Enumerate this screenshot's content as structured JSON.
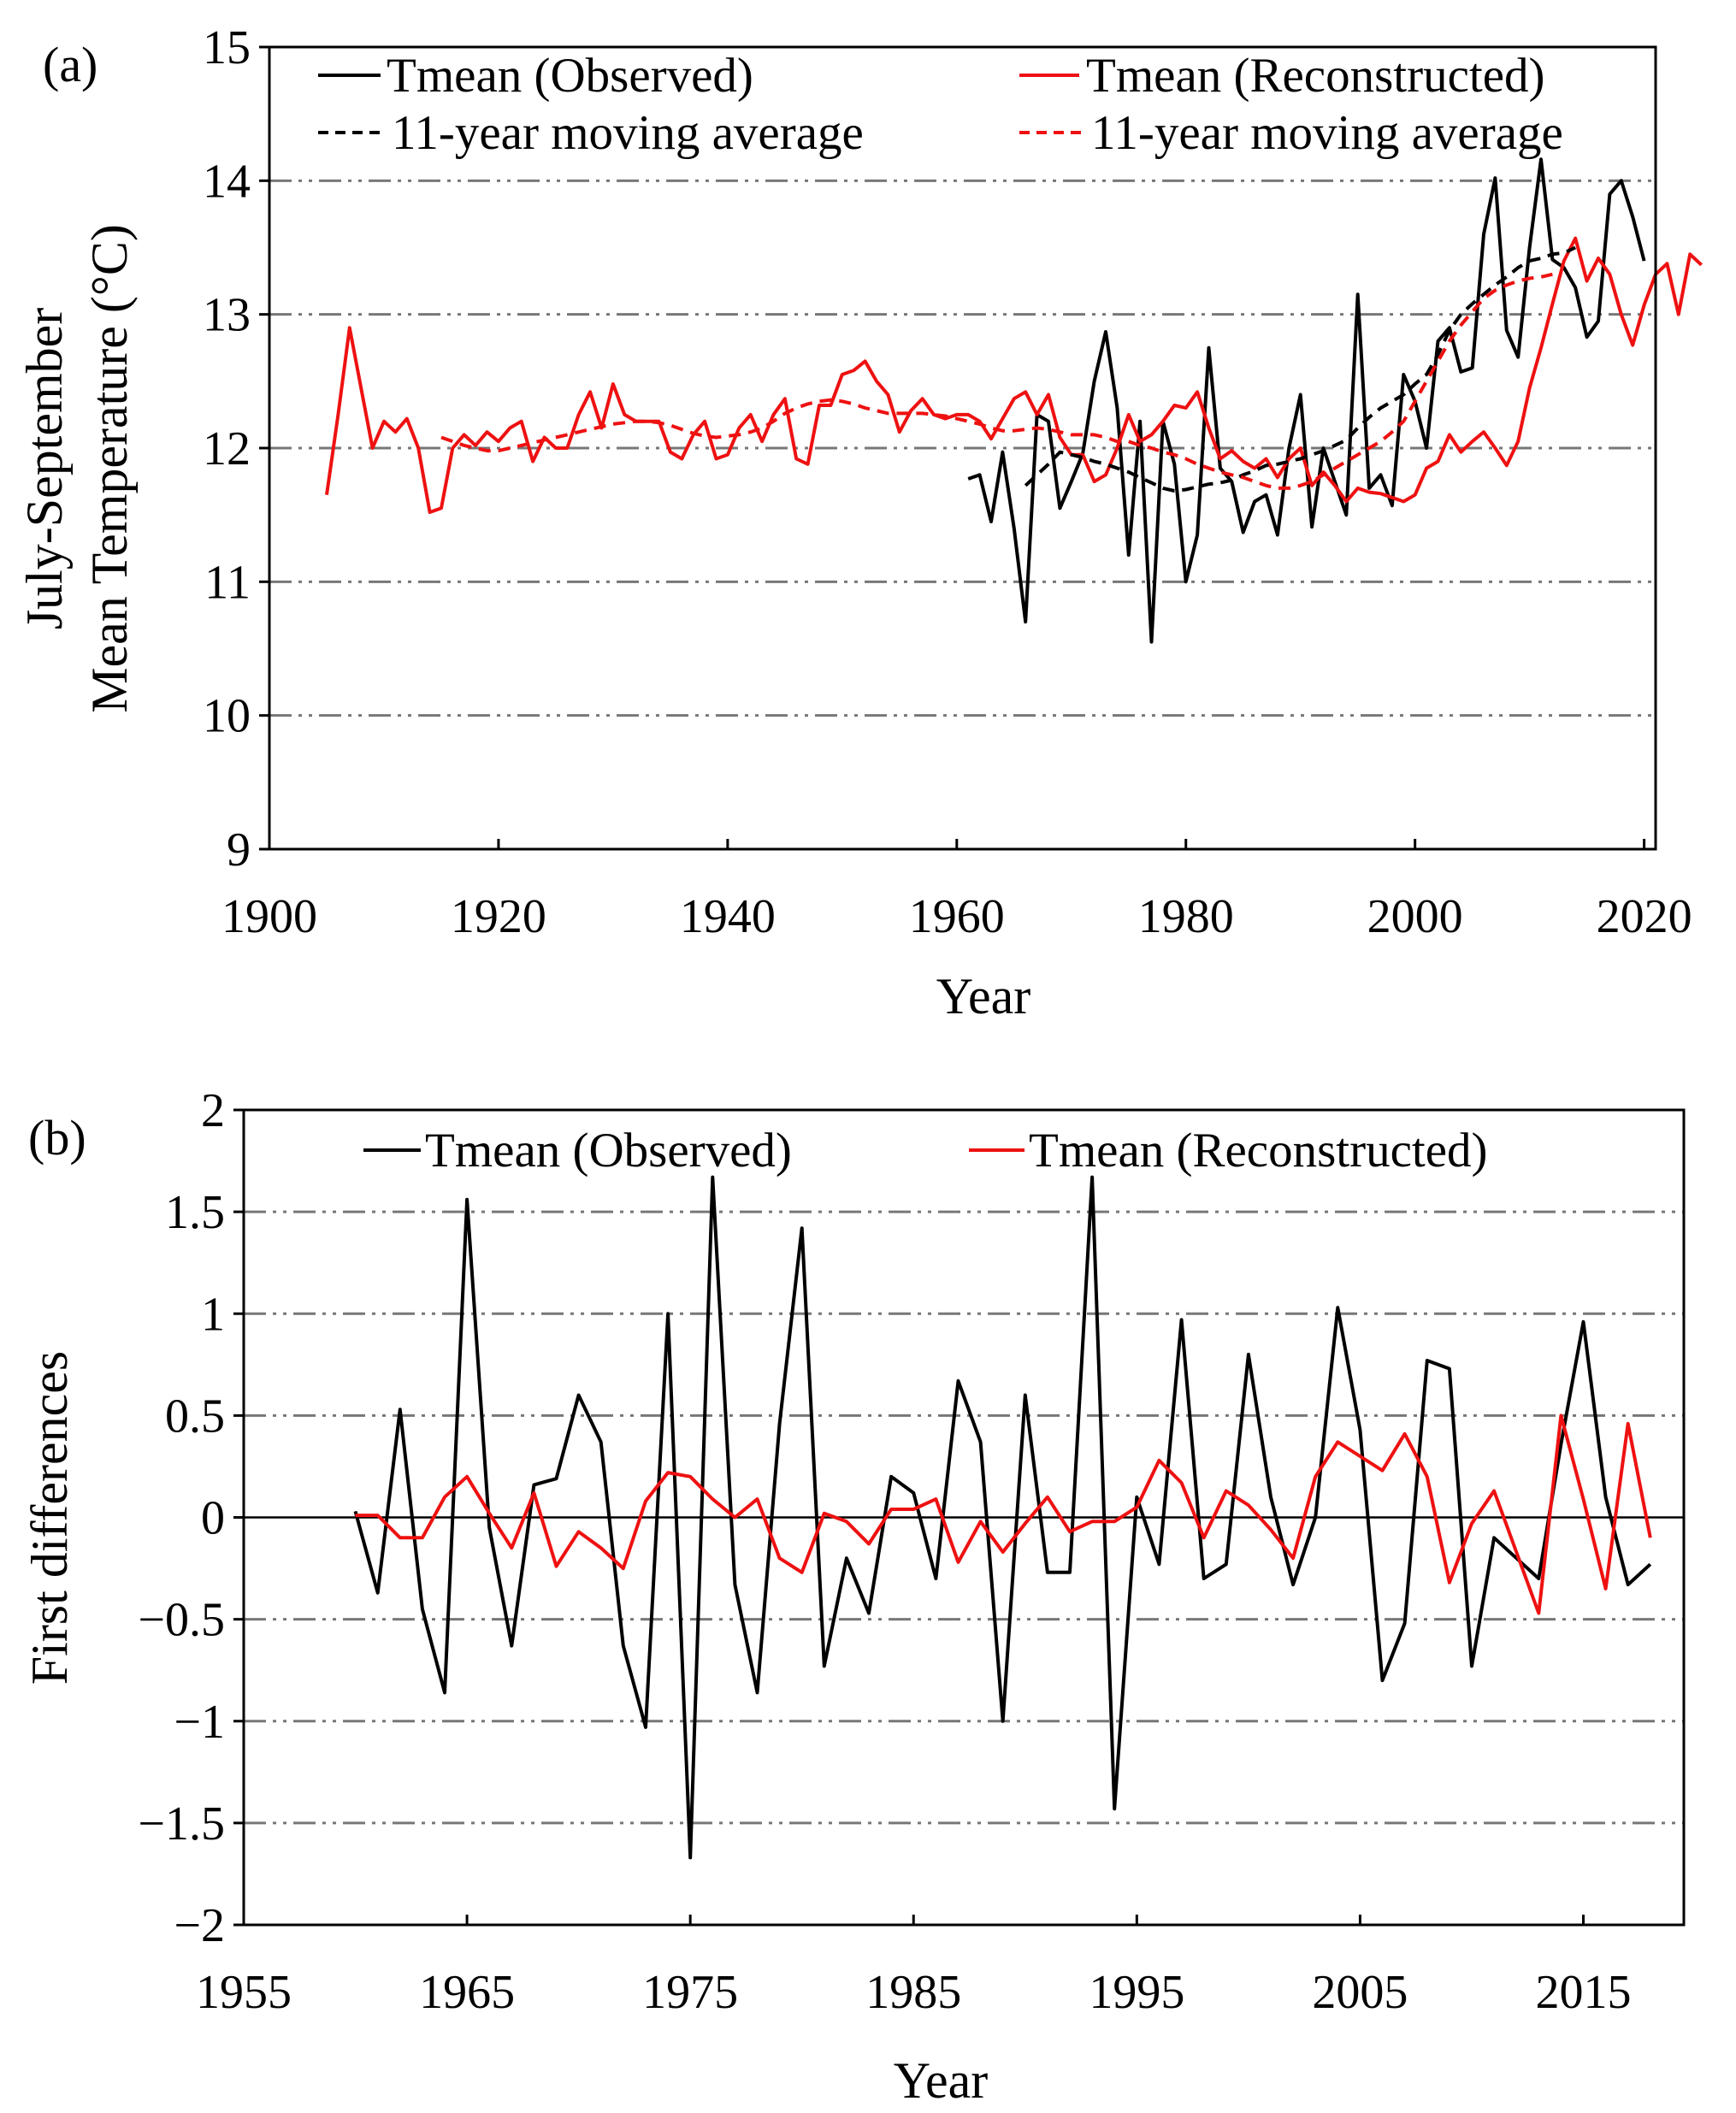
{
  "colors": {
    "observed": "#000000",
    "reconstructed": "#ee1111",
    "grid": "#777777",
    "axis": "#000000"
  },
  "chart_data": [
    {
      "panel_label": "(a)",
      "type": "line",
      "xlabel": "Year",
      "ylabel_line1": "July-September",
      "ylabel_line2": "Mean Temperature (°C)",
      "xlim": [
        1900,
        2021
      ],
      "ylim": [
        9,
        15
      ],
      "xticks": [
        1900,
        1920,
        1940,
        1960,
        1980,
        2000,
        2020
      ],
      "yticks": [
        9,
        10,
        11,
        12,
        13,
        14,
        15
      ],
      "grid_y": [
        10,
        11,
        12,
        13,
        14
      ],
      "legend": {
        "observed": "Tmean (Observed)",
        "reconstructed": "Tmean (Reconstructed)",
        "observed_ma": "11-year moving average",
        "reconstructed_ma": "11-year moving average"
      },
      "series": [
        {
          "name": "Tmean (Observed)",
          "style": "solid",
          "color_key": "observed",
          "x_start": 1961,
          "values": [
            11.77,
            11.8,
            11.45,
            11.97,
            11.4,
            10.7,
            12.25,
            12.2,
            11.55,
            11.75,
            11.96,
            12.5,
            12.87,
            12.3,
            11.2,
            12.2,
            10.55,
            12.2,
            11.88,
            11.0,
            11.35,
            12.75,
            11.85,
            11.75,
            11.37,
            11.6,
            11.65,
            11.35,
            12.0,
            12.4,
            11.41,
            12.0,
            11.75,
            11.5,
            13.15,
            11.7,
            11.8,
            11.57,
            12.55,
            12.35,
            12.0,
            12.8,
            12.9,
            12.57,
            12.6,
            13.6,
            14.02,
            12.88,
            12.68,
            13.5,
            14.16,
            13.41,
            13.35,
            13.2,
            12.83,
            12.95,
            13.9,
            14.0,
            13.73,
            13.4
          ]
        },
        {
          "name": "Tmean (Reconstructed)",
          "style": "solid",
          "color_key": "reconstructed",
          "x_start": 1905,
          "values": [
            11.65,
            12.25,
            12.9,
            12.45,
            12.0,
            12.2,
            12.12,
            12.22,
            12.0,
            11.52,
            11.55,
            12.0,
            12.1,
            12.02,
            12.12,
            12.05,
            12.15,
            12.2,
            11.9,
            12.08,
            12.0,
            12.0,
            12.25,
            12.42,
            12.15,
            12.48,
            12.25,
            12.2,
            12.2,
            12.2,
            11.97,
            11.92,
            12.1,
            12.2,
            11.92,
            11.95,
            12.15,
            12.25,
            12.05,
            12.25,
            12.37,
            11.92,
            11.88,
            12.32,
            12.32,
            12.55,
            12.58,
            12.65,
            12.5,
            12.4,
            12.12,
            12.28,
            12.37,
            12.25,
            12.22,
            12.25,
            12.25,
            12.2,
            12.07,
            12.22,
            12.37,
            12.42,
            12.25,
            12.4,
            12.08,
            11.95,
            11.95,
            11.75,
            11.8,
            12.0,
            12.25,
            12.05,
            12.1,
            12.2,
            12.32,
            12.3,
            12.42,
            12.15,
            11.92,
            11.98,
            11.9,
            11.85,
            11.92,
            11.78,
            11.92,
            12.0,
            11.72,
            11.82,
            11.72,
            11.6,
            11.7,
            11.67,
            11.66,
            11.63,
            11.6,
            11.65,
            11.85,
            11.9,
            12.1,
            11.97,
            12.05,
            12.12,
            12.0,
            11.87,
            12.05,
            12.45,
            12.75,
            13.08,
            13.4,
            13.57,
            13.25,
            13.42,
            13.3,
            13.0,
            12.77,
            13.07,
            13.3,
            13.38,
            13.0,
            13.45,
            13.37
          ]
        },
        {
          "name": "11-year moving average (Observed)",
          "style": "dashed",
          "color_key": "observed",
          "x_start": 1966,
          "values": [
            11.72,
            11.8,
            11.88,
            11.97,
            11.95,
            11.93,
            11.9,
            11.88,
            11.85,
            11.82,
            11.78,
            11.74,
            11.7,
            11.68,
            11.69,
            11.71,
            11.73,
            11.74,
            11.76,
            11.8,
            11.83,
            11.87,
            11.88,
            11.9,
            11.92,
            11.95,
            11.98,
            12.02,
            12.06,
            12.15,
            12.23,
            12.3,
            12.35,
            12.4,
            12.48,
            12.55,
            12.7,
            12.88,
            13.0,
            13.08,
            13.15,
            13.22,
            13.28,
            13.35,
            13.4,
            13.42,
            13.45,
            13.46,
            13.5
          ]
        },
        {
          "name": "11-year moving average (Reconstructed)",
          "style": "dashed",
          "color_key": "reconstructed",
          "x_start": 1915,
          "values": [
            12.08,
            12.05,
            12.02,
            12.0,
            11.98,
            11.98,
            12.0,
            12.02,
            12.04,
            12.06,
            12.08,
            12.1,
            12.12,
            12.14,
            12.16,
            12.18,
            12.19,
            12.2,
            12.2,
            12.19,
            12.17,
            12.14,
            12.11,
            12.09,
            12.08,
            12.09,
            12.1,
            12.12,
            12.15,
            12.2,
            12.26,
            12.3,
            12.33,
            12.35,
            12.36,
            12.35,
            12.33,
            12.3,
            12.28,
            12.26,
            12.26,
            12.26,
            12.26,
            12.25,
            12.24,
            12.22,
            12.2,
            12.18,
            12.15,
            12.13,
            12.13,
            12.14,
            12.15,
            12.14,
            12.12,
            12.1,
            12.1,
            12.1,
            12.08,
            12.05,
            12.05,
            12.02,
            12.0,
            11.97,
            11.95,
            11.92,
            11.88,
            11.85,
            11.82,
            11.8,
            11.78,
            11.75,
            11.72,
            11.7,
            11.7,
            11.72,
            11.75,
            11.8,
            11.85,
            11.9,
            11.95,
            12.0,
            12.05,
            12.12,
            12.2,
            12.35,
            12.5,
            12.65,
            12.8,
            12.92,
            13.02,
            13.12,
            13.18,
            13.22,
            13.25,
            13.27,
            13.28,
            13.3
          ]
        }
      ]
    },
    {
      "panel_label": "(b)",
      "type": "line",
      "xlabel": "Year",
      "ylabel": "First differences",
      "xlim": [
        1955,
        2019.5
      ],
      "ylim": [
        -2,
        2
      ],
      "xticks": [
        1955,
        1965,
        1975,
        1985,
        1995,
        2005,
        2015
      ],
      "yticks": [
        -2,
        -1.5,
        -1,
        -0.5,
        0,
        0.5,
        1,
        1.5,
        2
      ],
      "ytick_labels": [
        "−2",
        "−1.5",
        "−1",
        "−0.5",
        "0",
        "0.5",
        "1",
        "1.5",
        "2"
      ],
      "grid_y": [
        -1.5,
        -1,
        -0.5,
        0.5,
        1,
        1.5
      ],
      "zero_line": 0,
      "legend": {
        "observed": "Tmean (Observed)",
        "reconstructed": "Tmean (Reconstructed)"
      },
      "series": [
        {
          "name": "Tmean (Observed)",
          "color_key": "observed",
          "x_start": 1960,
          "values": [
            0.03,
            -0.37,
            0.53,
            -0.45,
            -0.86,
            1.56,
            -0.05,
            -0.63,
            0.16,
            0.19,
            0.6,
            0.37,
            -0.63,
            -1.03,
            1.0,
            -1.67,
            1.67,
            -0.33,
            -0.86,
            0.46,
            1.42,
            -0.73,
            -0.2,
            -0.47,
            0.2,
            0.12,
            -0.3,
            0.67,
            0.37,
            -1.0,
            0.6,
            -0.27,
            -0.27,
            1.67,
            -1.43,
            0.1,
            -0.23,
            0.97,
            -0.3,
            -0.23,
            0.8,
            0.1,
            -0.33,
            0.0,
            1.03,
            0.43,
            -0.8,
            -0.52,
            0.77,
            0.73,
            -0.73,
            -0.1,
            -0.2,
            -0.3,
            0.36,
            0.96,
            0.1,
            -0.33,
            -0.23
          ]
        },
        {
          "name": "Tmean (Reconstructed)",
          "color_key": "reconstructed",
          "x_start": 1960,
          "values": [
            0.01,
            0.01,
            -0.1,
            -0.1,
            0.1,
            0.2,
            0.02,
            -0.15,
            0.12,
            -0.24,
            -0.07,
            -0.15,
            -0.25,
            0.08,
            0.22,
            0.2,
            0.09,
            0.0,
            0.09,
            -0.2,
            -0.27,
            0.02,
            -0.02,
            -0.13,
            0.04,
            0.04,
            0.09,
            -0.22,
            -0.02,
            -0.17,
            -0.03,
            0.1,
            -0.07,
            -0.02,
            -0.02,
            0.05,
            0.28,
            0.17,
            -0.1,
            0.13,
            0.06,
            -0.06,
            -0.2,
            0.2,
            0.37,
            0.3,
            0.23,
            0.41,
            0.2,
            -0.32,
            -0.03,
            0.13,
            -0.17,
            -0.47,
            0.5,
            0.09,
            -0.35,
            0.46,
            -0.1
          ]
        }
      ]
    }
  ]
}
